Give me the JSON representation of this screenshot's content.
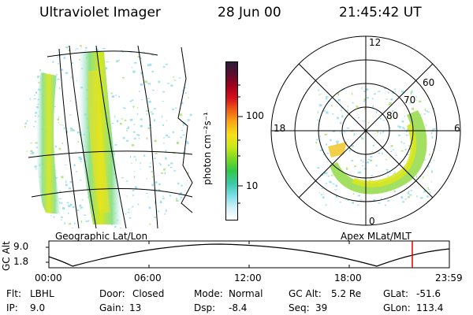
{
  "header": {
    "title": "Ultraviolet Imager",
    "date": "28 Jun 00",
    "time": "21:45:42 UT"
  },
  "colorbar": {
    "label": "photon cm⁻²s⁻¹",
    "ticks": [
      "100",
      "10"
    ],
    "colors": [
      "#2b1b3a",
      "#5e0c2e",
      "#a0001a",
      "#d8101a",
      "#f06414",
      "#f8a814",
      "#f8e018",
      "#c8e818",
      "#74d824",
      "#30c848",
      "#3cc8a8",
      "#7ce0e8",
      "#d0f0f8",
      "#ffffff"
    ]
  },
  "maps": {
    "left_label": "Geographic Lat/Lon",
    "right_label": "Apex MLat/MLT",
    "polar_labels": {
      "top": "12",
      "bottom": "0",
      "left": "18",
      "right": "6",
      "ring_60": "60",
      "ring_70": "70",
      "ring_80": "80"
    }
  },
  "timeline": {
    "axis_label": "GC Alt",
    "y_ticks": [
      "9.0",
      "1.8"
    ],
    "x_ticks": [
      "00:00",
      "06:00",
      "12:00",
      "18:00",
      "23:59"
    ],
    "marker_color": "#e00000"
  },
  "status": {
    "flt_label": "Flt:",
    "flt_value": "LBHL",
    "door_label": "Door:",
    "door_value": "Closed",
    "mode_label": "Mode:",
    "mode_value": "Normal",
    "gcalt_label": "GC Alt:",
    "gcalt_value": "5.2 Re",
    "glat_label": "GLat:",
    "glat_value": "-51.6",
    "ip_label": "IP:",
    "ip_value": "9.0",
    "gain_label": "Gain:",
    "gain_value": "13",
    "dsp_label": "Dsp:",
    "dsp_value": "-8.4",
    "seq_label": "Seq:",
    "seq_value": "39",
    "glon_label": "GLon:",
    "glon_value": "113.4"
  }
}
